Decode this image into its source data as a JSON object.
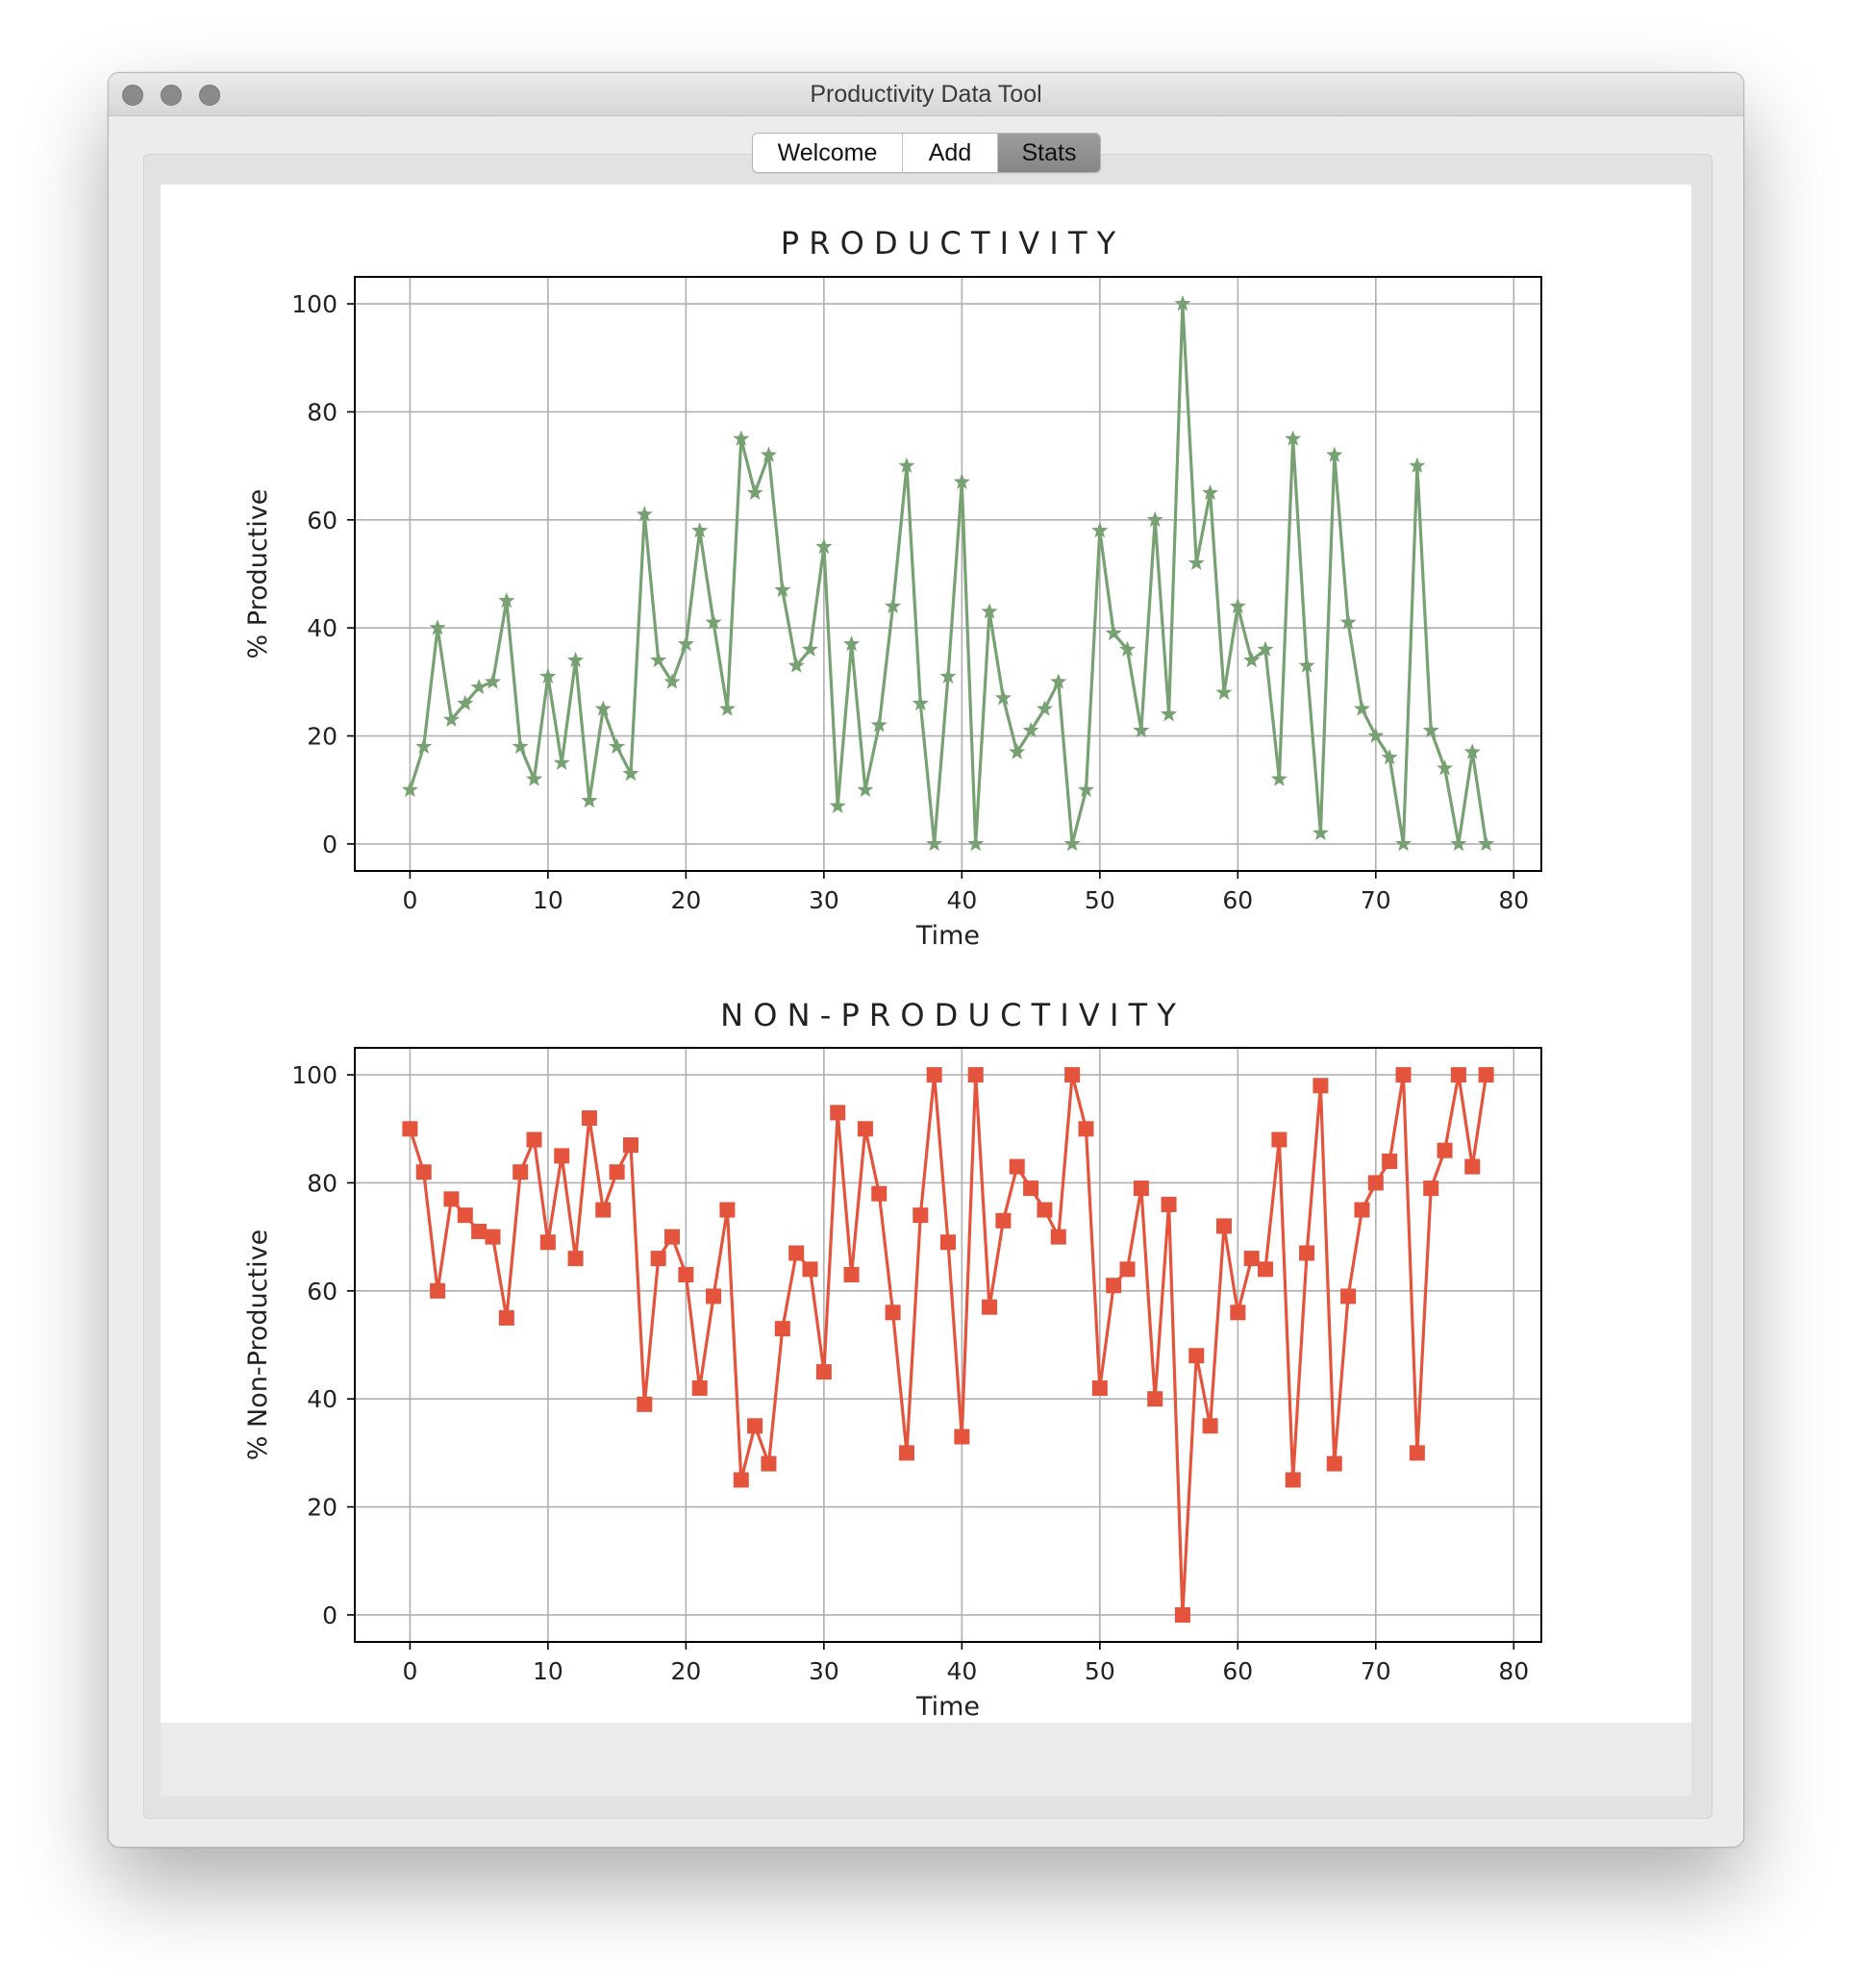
{
  "window": {
    "title": "Productivity Data Tool"
  },
  "tabs": [
    {
      "label": "Welcome",
      "selected": false
    },
    {
      "label": "Add",
      "selected": false
    },
    {
      "label": "Stats",
      "selected": true
    }
  ],
  "chart_data": [
    {
      "type": "line",
      "title": "P R O D U C T I V I T Y",
      "xlabel": "Time",
      "ylabel": "% Productive",
      "xlim": [
        -4,
        82
      ],
      "ylim": [
        -5,
        105
      ],
      "xticks": [
        0,
        10,
        20,
        30,
        40,
        50,
        60,
        70,
        80
      ],
      "yticks": [
        0,
        20,
        40,
        60,
        80,
        100
      ],
      "grid": true,
      "marker": "star",
      "color": "#77a172",
      "x_start": 0,
      "values": [
        10,
        18,
        40,
        23,
        26,
        29,
        30,
        45,
        18,
        12,
        31,
        15,
        34,
        8,
        25,
        18,
        13,
        61,
        34,
        30,
        37,
        58,
        41,
        25,
        75,
        65,
        72,
        47,
        33,
        36,
        55,
        7,
        37,
        10,
        22,
        44,
        70,
        26,
        0,
        31,
        67,
        0,
        43,
        27,
        17,
        21,
        25,
        30,
        0,
        10,
        58,
        39,
        36,
        21,
        60,
        24,
        100,
        52,
        65,
        28,
        44,
        34,
        36,
        12,
        75,
        33,
        2,
        72,
        41,
        25,
        20,
        16,
        0,
        70,
        21,
        14,
        0,
        17,
        0
      ]
    },
    {
      "type": "line",
      "title": "N O N - P R O D U C T I V I T Y",
      "xlabel": "Time",
      "ylabel": "% Non-Productive",
      "xlim": [
        -4,
        82
      ],
      "ylim": [
        -5,
        105
      ],
      "xticks": [
        0,
        10,
        20,
        30,
        40,
        50,
        60,
        70,
        80
      ],
      "yticks": [
        0,
        20,
        40,
        60,
        80,
        100
      ],
      "grid": true,
      "marker": "square",
      "color": "#e4533c",
      "x_start": 0,
      "values": [
        90,
        82,
        60,
        77,
        74,
        71,
        70,
        55,
        82,
        88,
        69,
        85,
        66,
        92,
        75,
        82,
        87,
        39,
        66,
        70,
        63,
        42,
        59,
        75,
        25,
        35,
        28,
        53,
        67,
        64,
        45,
        93,
        63,
        90,
        78,
        56,
        30,
        74,
        100,
        69,
        33,
        100,
        57,
        73,
        83,
        79,
        75,
        70,
        100,
        90,
        42,
        61,
        64,
        79,
        40,
        76,
        0,
        48,
        35,
        72,
        56,
        66,
        64,
        88,
        25,
        67,
        98,
        28,
        59,
        75,
        80,
        84,
        100,
        30,
        79,
        86,
        100,
        83,
        100
      ]
    }
  ]
}
